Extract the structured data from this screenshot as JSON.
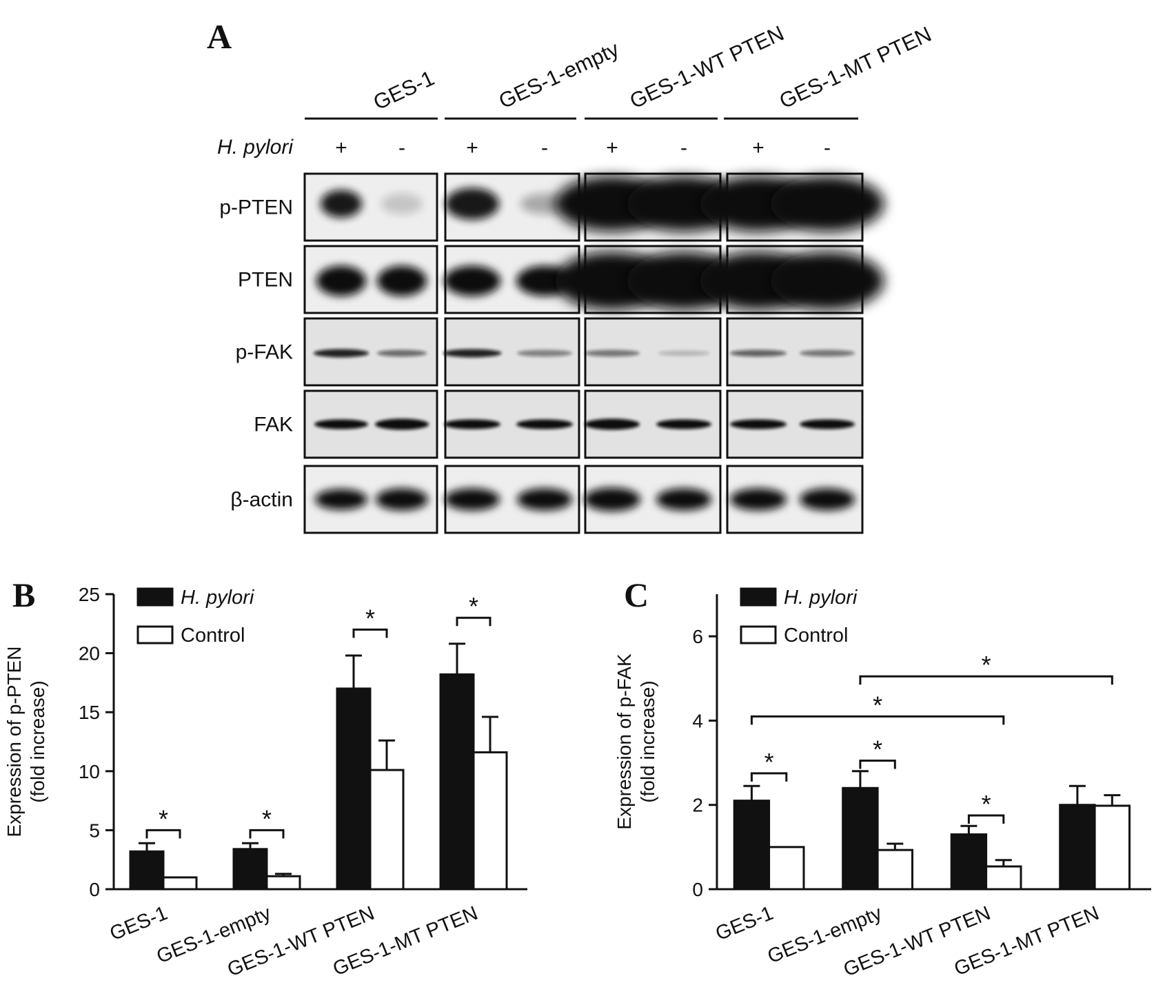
{
  "panel_a": {
    "letter": "A",
    "groups": [
      "GES-1",
      "GES-1-empty",
      "GES-1-WT PTEN",
      "GES-1-MT PTEN"
    ],
    "treatment_label": "H. pylori",
    "lane_signs": [
      "+",
      "-",
      "+",
      "-",
      "+",
      "-",
      "+",
      "-"
    ],
    "proteins": [
      "p-PTEN",
      "PTEN",
      "p-FAK",
      "FAK",
      "β-actin"
    ]
  },
  "chart_data": [
    {
      "panel": "B",
      "type": "bar",
      "categories": [
        "GES-1",
        "GES-1-empty",
        "GES-1-WT PTEN",
        "GES-1-MT PTEN"
      ],
      "series": [
        {
          "name": "H. pylori",
          "values": [
            3.2,
            3.4,
            17.0,
            18.2
          ],
          "error": [
            0.7,
            0.5,
            2.8,
            2.6
          ],
          "fill": "#111111"
        },
        {
          "name": "Control",
          "values": [
            1.0,
            1.1,
            10.1,
            11.6
          ],
          "error": [
            0,
            0.2,
            2.5,
            3.0
          ],
          "fill": "#ffffff"
        }
      ],
      "ylabel": "Expression of p-PTEN",
      "ylabel2": "(fold increase)",
      "ylim": [
        0,
        25
      ],
      "yticks": [
        "0",
        "5",
        "10",
        "15",
        "20",
        "25"
      ],
      "legend": "top-left",
      "significance": [
        {
          "from": "H. pylori",
          "to": "Control",
          "category": 0,
          "y": 5.0,
          "label": "*"
        },
        {
          "from": "H. pylori",
          "to": "Control",
          "category": 1,
          "y": 5.0,
          "label": "*"
        },
        {
          "from": "H. pylori",
          "to": "Control",
          "category": 2,
          "y": 22.0,
          "label": "*"
        },
        {
          "from": "H. pylori",
          "to": "Control",
          "category": 3,
          "y": 23.0,
          "label": "*"
        }
      ]
    },
    {
      "panel": "C",
      "type": "bar",
      "categories": [
        "GES-1",
        "GES-1-empty",
        "GES-1-WT PTEN",
        "GES-1-MT PTEN"
      ],
      "series": [
        {
          "name": "H. pylori",
          "values": [
            2.1,
            2.4,
            1.3,
            2.0
          ],
          "error": [
            0.35,
            0.4,
            0.2,
            0.45
          ],
          "fill": "#111111"
        },
        {
          "name": "Control",
          "values": [
            1.0,
            0.93,
            0.54,
            1.98
          ],
          "error": [
            0,
            0.15,
            0.15,
            0.25
          ],
          "fill": "#ffffff"
        }
      ],
      "ylabel": "Expression of p-FAK",
      "ylabel2": "(fold increase)",
      "ylim": [
        0,
        7
      ],
      "yticks": [
        "0",
        "2",
        "4",
        "6"
      ],
      "legend": "top-left",
      "significance": [
        {
          "category": 0,
          "y": 2.75,
          "label": "*"
        },
        {
          "category": 1,
          "y": 3.05,
          "label": "*"
        },
        {
          "category": 2,
          "y": 1.75,
          "label": "*"
        },
        {
          "span": [
            0,
            2
          ],
          "y": 4.1,
          "label": "*"
        },
        {
          "span": [
            1,
            3
          ],
          "y": 5.05,
          "label": "*"
        }
      ]
    }
  ]
}
